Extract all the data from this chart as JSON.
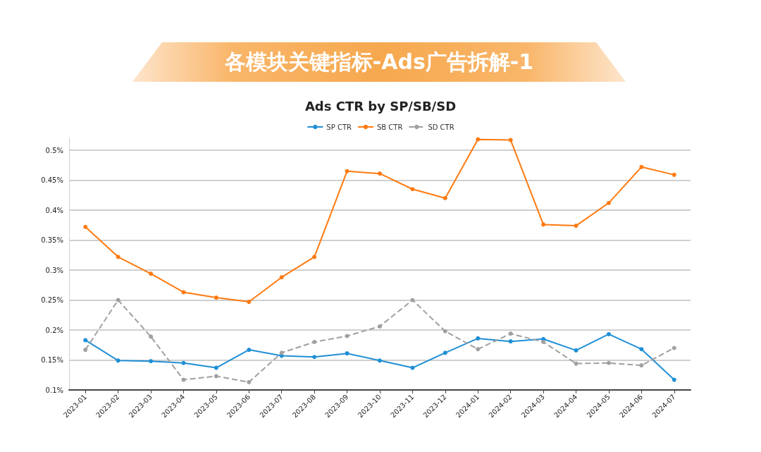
{
  "chart_data": {
    "type": "line",
    "title": "各模块关键指标-Ads广告拆解-1",
    "subtitle": "Ads CTR by SP/SB/SD",
    "categories": [
      "2023-01",
      "2023-02",
      "2023-03",
      "2023-04",
      "2023-05",
      "2023-06",
      "2023-07",
      "2023-08",
      "2023-09",
      "2023-10",
      "2023-11",
      "2023-12",
      "2024-01",
      "2024-02",
      "2024-03",
      "2024-04",
      "2024-05",
      "2024-06",
      "2024-07"
    ],
    "series": [
      {
        "name": "SP CTR",
        "color": "#1f8fd6",
        "line_style": "solid",
        "values": [
          0.183,
          0.149,
          0.148,
          0.145,
          0.137,
          0.167,
          0.157,
          0.155,
          0.161,
          0.149,
          0.137,
          0.162,
          0.186,
          0.181,
          0.185,
          0.166,
          0.193,
          0.168,
          0.117
        ]
      },
      {
        "name": "SB CTR",
        "color": "#ff7a10",
        "line_style": "solid",
        "values": [
          0.372,
          0.322,
          0.294,
          0.263,
          0.254,
          0.247,
          0.288,
          0.322,
          0.465,
          0.461,
          0.435,
          0.42,
          0.518,
          0.517,
          0.376,
          0.374,
          0.412,
          0.472,
          0.459
        ]
      },
      {
        "name": "SD CTR",
        "color": "#a0a0a0",
        "line_style": "dashed",
        "values": [
          0.167,
          0.25,
          0.189,
          0.117,
          0.123,
          0.113,
          0.162,
          0.18,
          0.19,
          0.206,
          0.25,
          0.198,
          0.168,
          0.194,
          0.18,
          0.144,
          0.145,
          0.141,
          0.17
        ]
      }
    ],
    "ylim": [
      0.1,
      0.52
    ],
    "yticks": [
      {
        "value": 0.1,
        "label": "0.1%"
      },
      {
        "value": 0.15,
        "label": "0.15%"
      },
      {
        "value": 0.2,
        "label": "0.2%"
      },
      {
        "value": 0.25,
        "label": "0.25%"
      },
      {
        "value": 0.3,
        "label": "0.3%"
      },
      {
        "value": 0.35,
        "label": "0.35%"
      },
      {
        "value": 0.4,
        "label": "0.4%"
      },
      {
        "value": 0.45,
        "label": "0.45%"
      },
      {
        "value": 0.5,
        "label": "0.5%"
      }
    ],
    "grid": "y",
    "legend": "top",
    "marker": "circle"
  }
}
